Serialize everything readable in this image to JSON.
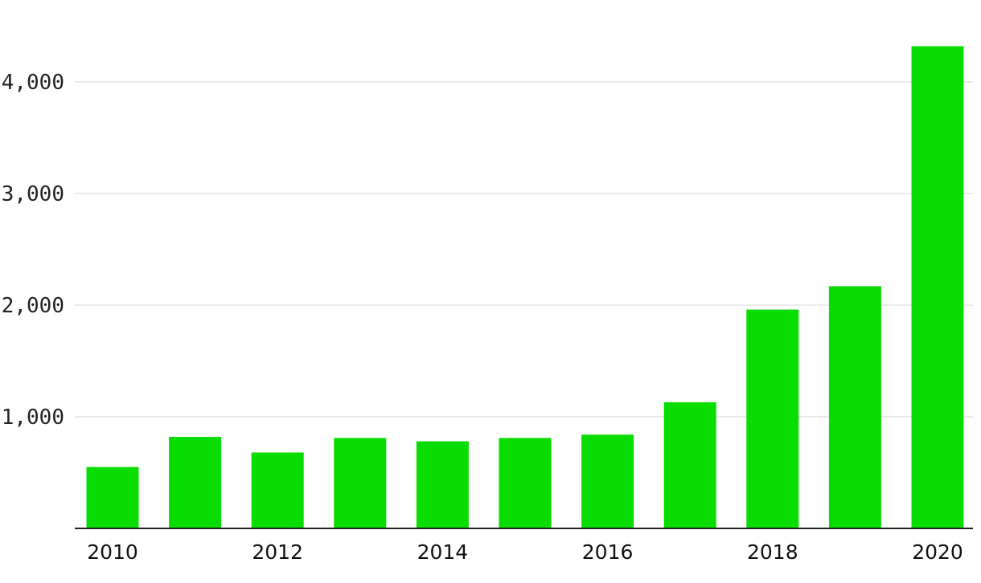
{
  "chart_data": {
    "type": "bar",
    "title": "",
    "xlabel": "",
    "ylabel": "",
    "categories": [
      "2010",
      "2011",
      "2012",
      "2013",
      "2014",
      "2015",
      "2016",
      "2017",
      "2018",
      "2019",
      "2020"
    ],
    "values": [
      550,
      820,
      680,
      810,
      780,
      810,
      840,
      1130,
      1960,
      2170,
      4320
    ],
    "ylim": [
      0,
      4500
    ],
    "y_ticks": [
      {
        "value": 1000,
        "label": "1,000"
      },
      {
        "value": 2000,
        "label": "2,000"
      },
      {
        "value": 3000,
        "label": "3,000"
      },
      {
        "value": 4000,
        "label": "4,000"
      }
    ],
    "x_tick_labels": [
      "2010",
      "2012",
      "2014",
      "2016",
      "2018",
      "2020"
    ],
    "bar_color": "#09dc00",
    "grid": true,
    "legend": "none"
  }
}
